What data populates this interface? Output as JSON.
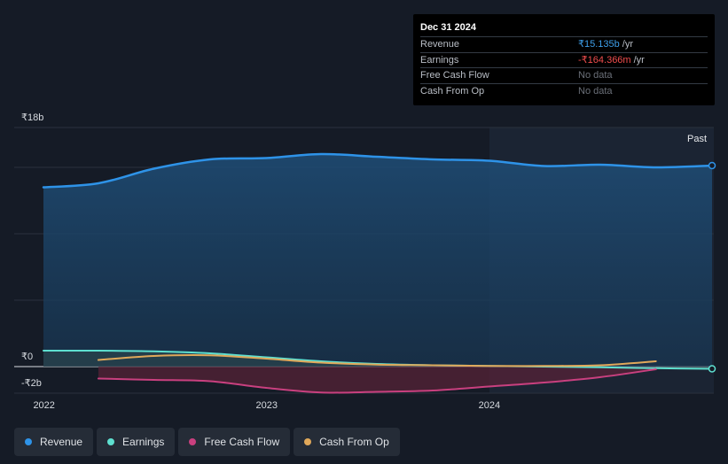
{
  "tooltip": {
    "date": "Dec 31 2024",
    "rows": [
      {
        "label": "Revenue",
        "value": "₹15.135b",
        "unit": "/yr"
      },
      {
        "label": "Earnings",
        "value": "-₹164.366m",
        "unit": "/yr"
      },
      {
        "label": "Free Cash Flow",
        "value": "No data",
        "unit": ""
      },
      {
        "label": "Cash From Op",
        "value": "No data",
        "unit": ""
      }
    ]
  },
  "legend": [
    {
      "label": "Revenue",
      "color": "#2e93e8"
    },
    {
      "label": "Earnings",
      "color": "#5ee0d0"
    },
    {
      "label": "Free Cash Flow",
      "color": "#c9407f"
    },
    {
      "label": "Cash From Op",
      "color": "#e0a85a"
    }
  ],
  "chart_data": {
    "type": "line",
    "y_unit": "₹ billions",
    "ylim": [
      -2,
      18
    ],
    "y_tick_labels": [
      "₹18b",
      "₹0",
      "-₹2b"
    ],
    "x_tick_labels": [
      "2022",
      "2023",
      "2024"
    ],
    "past_label": "Past",
    "series": [
      {
        "name": "Revenue",
        "color": "#2e93e8",
        "area": true,
        "points": [
          [
            "2021-12-31",
            13.5
          ],
          [
            "2022-03-31",
            13.8
          ],
          [
            "2022-06-30",
            14.9
          ],
          [
            "2022-09-30",
            15.6
          ],
          [
            "2022-12-31",
            15.7
          ],
          [
            "2023-03-31",
            16.0
          ],
          [
            "2023-06-30",
            15.8
          ],
          [
            "2023-09-30",
            15.6
          ],
          [
            "2023-12-31",
            15.5
          ],
          [
            "2024-03-31",
            15.1
          ],
          [
            "2024-06-30",
            15.2
          ],
          [
            "2024-09-30",
            15.0
          ],
          [
            "2024-12-31",
            15.135
          ]
        ]
      },
      {
        "name": "Earnings",
        "color": "#5ee0d0",
        "area": true,
        "points": [
          [
            "2021-12-31",
            1.2
          ],
          [
            "2022-03-31",
            1.2
          ],
          [
            "2022-06-30",
            1.15
          ],
          [
            "2022-09-30",
            1.0
          ],
          [
            "2022-12-31",
            0.7
          ],
          [
            "2023-03-31",
            0.4
          ],
          [
            "2023-06-30",
            0.2
          ],
          [
            "2023-09-30",
            0.1
          ],
          [
            "2023-12-31",
            0.05
          ],
          [
            "2024-03-31",
            0.0
          ],
          [
            "2024-06-30",
            -0.05
          ],
          [
            "2024-09-30",
            -0.12
          ],
          [
            "2024-12-31",
            -0.164
          ]
        ]
      },
      {
        "name": "Free Cash Flow",
        "color": "#c9407f",
        "area": true,
        "points": [
          [
            "2022-03-31",
            -0.9
          ],
          [
            "2022-06-30",
            -1.0
          ],
          [
            "2022-09-30",
            -1.1
          ],
          [
            "2022-12-31",
            -1.6
          ],
          [
            "2023-03-31",
            -1.95
          ],
          [
            "2023-06-30",
            -1.9
          ],
          [
            "2023-09-30",
            -1.8
          ],
          [
            "2023-12-31",
            -1.5
          ],
          [
            "2024-03-31",
            -1.2
          ],
          [
            "2024-06-30",
            -0.8
          ],
          [
            "2024-09-30",
            -0.2
          ]
        ]
      },
      {
        "name": "Cash From Op",
        "color": "#e0a85a",
        "area": false,
        "points": [
          [
            "2022-03-31",
            0.5
          ],
          [
            "2022-06-30",
            0.8
          ],
          [
            "2022-09-30",
            0.85
          ],
          [
            "2022-12-31",
            0.6
          ],
          [
            "2023-03-31",
            0.3
          ],
          [
            "2023-06-30",
            0.15
          ],
          [
            "2023-09-30",
            0.1
          ],
          [
            "2023-12-31",
            0.05
          ],
          [
            "2024-03-31",
            0.05
          ],
          [
            "2024-06-30",
            0.1
          ],
          [
            "2024-09-30",
            0.4
          ]
        ]
      }
    ]
  }
}
